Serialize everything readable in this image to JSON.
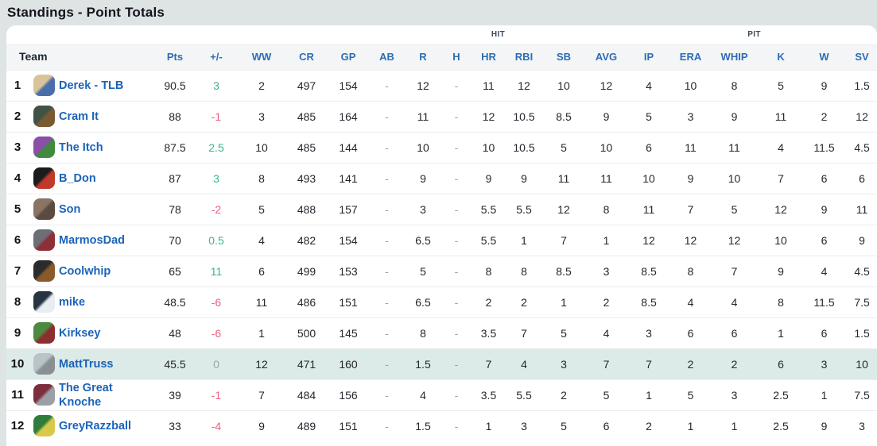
{
  "title": "Standings - Point Totals",
  "team_header": "Team",
  "groups": [
    {
      "label": "",
      "span": 8
    },
    {
      "label": "HIT",
      "span": 7
    },
    {
      "label": "PIT",
      "span": 6
    }
  ],
  "columns": [
    {
      "key": "pts",
      "label": "Pts"
    },
    {
      "key": "delta",
      "label": "+/-"
    },
    {
      "key": "ww",
      "label": "WW"
    },
    {
      "key": "cr",
      "label": "CR"
    },
    {
      "key": "gp",
      "label": "GP"
    },
    {
      "key": "ab",
      "label": "AB"
    },
    {
      "key": "r",
      "label": "R"
    },
    {
      "key": "h",
      "label": "H"
    },
    {
      "key": "hr",
      "label": "HR"
    },
    {
      "key": "rbi",
      "label": "RBI"
    },
    {
      "key": "sb",
      "label": "SB"
    },
    {
      "key": "avg",
      "label": "AVG"
    },
    {
      "key": "ip",
      "label": "IP"
    },
    {
      "key": "era",
      "label": "ERA"
    },
    {
      "key": "whip",
      "label": "WHIP"
    },
    {
      "key": "k",
      "label": "K"
    },
    {
      "key": "w",
      "label": "W"
    },
    {
      "key": "sv",
      "label": "SV"
    }
  ],
  "colors": {
    "page_bg": "#dee3e3",
    "card_bg": "#ffffff",
    "header_bg": "#f3f5f6",
    "header_blue": "#2d6cb5",
    "team_link_blue": "#1b63b8",
    "positive_green": "#3cb489",
    "negative_red": "#ee5f7d",
    "zero_gray": "#9aa3ab",
    "highlight_row": "#dceae8"
  },
  "rows": [
    {
      "rank": "1",
      "name": "Derek - TLB",
      "highlight": false,
      "avatar": {
        "colors": [
          "#d9c49a",
          "#4a6ea9"
        ]
      },
      "stats": {
        "pts": "90.5",
        "delta": "3",
        "ww": "2",
        "cr": "497",
        "gp": "154",
        "ab": "-",
        "r": "12",
        "h": "-",
        "hr": "11",
        "rbi": "12",
        "sb": "10",
        "avg": "12",
        "ip": "4",
        "era": "10",
        "whip": "8",
        "k": "5",
        "w": "9",
        "sv": "1.5"
      }
    },
    {
      "rank": "2",
      "name": "Cram It",
      "highlight": false,
      "avatar": {
        "colors": [
          "#3f5244",
          "#7a5a33"
        ]
      },
      "stats": {
        "pts": "88",
        "delta": "-1",
        "ww": "3",
        "cr": "485",
        "gp": "164",
        "ab": "-",
        "r": "11",
        "h": "-",
        "hr": "12",
        "rbi": "10.5",
        "sb": "8.5",
        "avg": "9",
        "ip": "5",
        "era": "3",
        "whip": "9",
        "k": "11",
        "w": "2",
        "sv": "12"
      }
    },
    {
      "rank": "3",
      "name": "The Itch",
      "highlight": false,
      "avatar": {
        "colors": [
          "#8a4fa8",
          "#3f8a3f"
        ]
      },
      "stats": {
        "pts": "87.5",
        "delta": "2.5",
        "ww": "10",
        "cr": "485",
        "gp": "144",
        "ab": "-",
        "r": "10",
        "h": "-",
        "hr": "10",
        "rbi": "10.5",
        "sb": "5",
        "avg": "10",
        "ip": "6",
        "era": "11",
        "whip": "11",
        "k": "4",
        "w": "11.5",
        "sv": "4.5"
      }
    },
    {
      "rank": "4",
      "name": "B_Don",
      "highlight": false,
      "avatar": {
        "colors": [
          "#1b1b1b",
          "#c0392b"
        ]
      },
      "stats": {
        "pts": "87",
        "delta": "3",
        "ww": "8",
        "cr": "493",
        "gp": "141",
        "ab": "-",
        "r": "9",
        "h": "-",
        "hr": "9",
        "rbi": "9",
        "sb": "11",
        "avg": "11",
        "ip": "10",
        "era": "9",
        "whip": "10",
        "k": "7",
        "w": "6",
        "sv": "6"
      }
    },
    {
      "rank": "5",
      "name": "Son",
      "highlight": false,
      "avatar": {
        "colors": [
          "#8a7465",
          "#5b4a3f"
        ]
      },
      "stats": {
        "pts": "78",
        "delta": "-2",
        "ww": "5",
        "cr": "488",
        "gp": "157",
        "ab": "-",
        "r": "3",
        "h": "-",
        "hr": "5.5",
        "rbi": "5.5",
        "sb": "12",
        "avg": "8",
        "ip": "11",
        "era": "7",
        "whip": "5",
        "k": "12",
        "w": "9",
        "sv": "11"
      }
    },
    {
      "rank": "6",
      "name": "MarmosDad",
      "highlight": false,
      "avatar": {
        "colors": [
          "#6e6e76",
          "#8c2f39"
        ]
      },
      "stats": {
        "pts": "70",
        "delta": "0.5",
        "ww": "4",
        "cr": "482",
        "gp": "154",
        "ab": "-",
        "r": "6.5",
        "h": "-",
        "hr": "5.5",
        "rbi": "1",
        "sb": "7",
        "avg": "1",
        "ip": "12",
        "era": "12",
        "whip": "12",
        "k": "10",
        "w": "6",
        "sv": "9"
      }
    },
    {
      "rank": "7",
      "name": "Coolwhip",
      "highlight": false,
      "avatar": {
        "colors": [
          "#2b2b2b",
          "#8a5a2b"
        ]
      },
      "stats": {
        "pts": "65",
        "delta": "11",
        "ww": "6",
        "cr": "499",
        "gp": "153",
        "ab": "-",
        "r": "5",
        "h": "-",
        "hr": "8",
        "rbi": "8",
        "sb": "8.5",
        "avg": "3",
        "ip": "8.5",
        "era": "8",
        "whip": "7",
        "k": "9",
        "w": "4",
        "sv": "4.5"
      }
    },
    {
      "rank": "8",
      "name": "mike",
      "highlight": false,
      "avatar": {
        "colors": [
          "#273444",
          "#e8edf2"
        ]
      },
      "stats": {
        "pts": "48.5",
        "delta": "-6",
        "ww": "11",
        "cr": "486",
        "gp": "151",
        "ab": "-",
        "r": "6.5",
        "h": "-",
        "hr": "2",
        "rbi": "2",
        "sb": "1",
        "avg": "2",
        "ip": "8.5",
        "era": "4",
        "whip": "4",
        "k": "8",
        "w": "11.5",
        "sv": "7.5"
      }
    },
    {
      "rank": "9",
      "name": "Kirksey",
      "highlight": false,
      "avatar": {
        "colors": [
          "#4c8a3f",
          "#8a2f2f"
        ]
      },
      "stats": {
        "pts": "48",
        "delta": "-6",
        "ww": "1",
        "cr": "500",
        "gp": "145",
        "ab": "-",
        "r": "8",
        "h": "-",
        "hr": "3.5",
        "rbi": "7",
        "sb": "5",
        "avg": "4",
        "ip": "3",
        "era": "6",
        "whip": "6",
        "k": "1",
        "w": "6",
        "sv": "1.5"
      }
    },
    {
      "rank": "10",
      "name": "MattTruss",
      "highlight": true,
      "avatar": {
        "colors": [
          "#b9c4c9",
          "#8a8f93"
        ]
      },
      "stats": {
        "pts": "45.5",
        "delta": "0",
        "ww": "12",
        "cr": "471",
        "gp": "160",
        "ab": "-",
        "r": "1.5",
        "h": "-",
        "hr": "7",
        "rbi": "4",
        "sb": "3",
        "avg": "7",
        "ip": "7",
        "era": "2",
        "whip": "2",
        "k": "6",
        "w": "3",
        "sv": "10"
      }
    },
    {
      "rank": "11",
      "name": "The Great Knoche",
      "highlight": false,
      "avatar": {
        "colors": [
          "#7e2d3c",
          "#9aa0a6"
        ]
      },
      "stats": {
        "pts": "39",
        "delta": "-1",
        "ww": "7",
        "cr": "484",
        "gp": "156",
        "ab": "-",
        "r": "4",
        "h": "-",
        "hr": "3.5",
        "rbi": "5.5",
        "sb": "2",
        "avg": "5",
        "ip": "1",
        "era": "5",
        "whip": "3",
        "k": "2.5",
        "w": "1",
        "sv": "7.5"
      }
    },
    {
      "rank": "12",
      "name": "GreyRazzball",
      "highlight": false,
      "avatar": {
        "colors": [
          "#2f7d3a",
          "#d9c94a"
        ]
      },
      "stats": {
        "pts": "33",
        "delta": "-4",
        "ww": "9",
        "cr": "489",
        "gp": "151",
        "ab": "-",
        "r": "1.5",
        "h": "-",
        "hr": "1",
        "rbi": "3",
        "sb": "5",
        "avg": "6",
        "ip": "2",
        "era": "1",
        "whip": "1",
        "k": "2.5",
        "w": "9",
        "sv": "3"
      }
    }
  ]
}
